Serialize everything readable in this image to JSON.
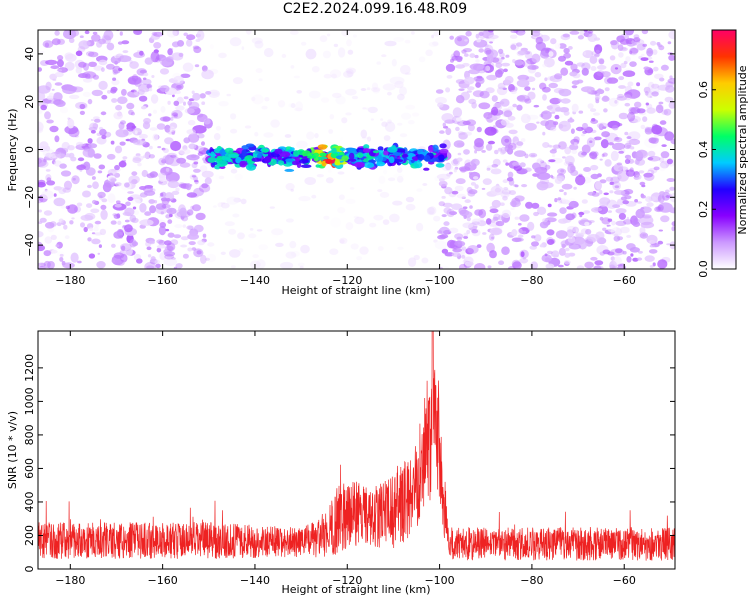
{
  "title": "C2E2.2024.099.16.48.R09",
  "chart_data": [
    {
      "type": "heatmap",
      "xlabel": "Height of straight line (km)",
      "ylabel": "Frequency (Hz)",
      "xlim": [
        -187,
        -49
      ],
      "ylim": [
        -50,
        50
      ],
      "xticks": [
        -180,
        -160,
        -140,
        -120,
        -100,
        -80,
        -60
      ],
      "yticks": [
        -40,
        -20,
        0,
        20,
        40
      ],
      "colorbar": {
        "label": "Normalized spectral amplitude",
        "range": [
          0.0,
          0.8
        ],
        "ticks": [
          0.0,
          0.2,
          0.4,
          0.6
        ],
        "colors": [
          "#ffffff",
          "#cc99ff",
          "#8800ff",
          "#2200ff",
          "#00ccff",
          "#00ff66",
          "#ccff00",
          "#ffcc00",
          "#ff3300",
          "#ff0066"
        ]
      },
      "features": [
        {
          "kind": "background_noise",
          "x_range": [
            -187,
            -49
          ],
          "y_range": [
            -50,
            50
          ],
          "amplitude": 0.08
        },
        {
          "kind": "quiet_gap",
          "x_range": [
            -150,
            -100
          ]
        },
        {
          "kind": "horizontal_band",
          "x_range": [
            -150,
            -99
          ],
          "frequency": -3,
          "amplitude": 0.3,
          "peak_x": -124,
          "peak_amplitude": 0.75
        }
      ]
    },
    {
      "type": "line",
      "xlabel": "Height of straight line (km)",
      "ylabel": "SNR (10 * v/v)",
      "xlim": [
        -187,
        -49
      ],
      "ylim": [
        0,
        1420
      ],
      "xticks": [
        -180,
        -160,
        -140,
        -120,
        -100,
        -80,
        -60
      ],
      "yticks": [
        0,
        200,
        400,
        600,
        800,
        1000,
        1200
      ],
      "color": "#ee2222",
      "envelope_x": [
        -187,
        -150,
        -140,
        -130,
        -126,
        -124,
        -121,
        -119,
        -115,
        -110,
        -106,
        -104,
        -102,
        -101,
        -100,
        -99,
        -98,
        -90,
        -70,
        -49
      ],
      "envelope_median": [
        170,
        170,
        165,
        160,
        180,
        230,
        330,
        340,
        300,
        340,
        450,
        620,
        780,
        950,
        700,
        400,
        150,
        150,
        150,
        150
      ],
      "envelope_spread": [
        110,
        110,
        100,
        90,
        120,
        170,
        220,
        200,
        180,
        220,
        260,
        320,
        380,
        420,
        320,
        250,
        100,
        100,
        100,
        100
      ],
      "peak_value": 1420
    }
  ]
}
